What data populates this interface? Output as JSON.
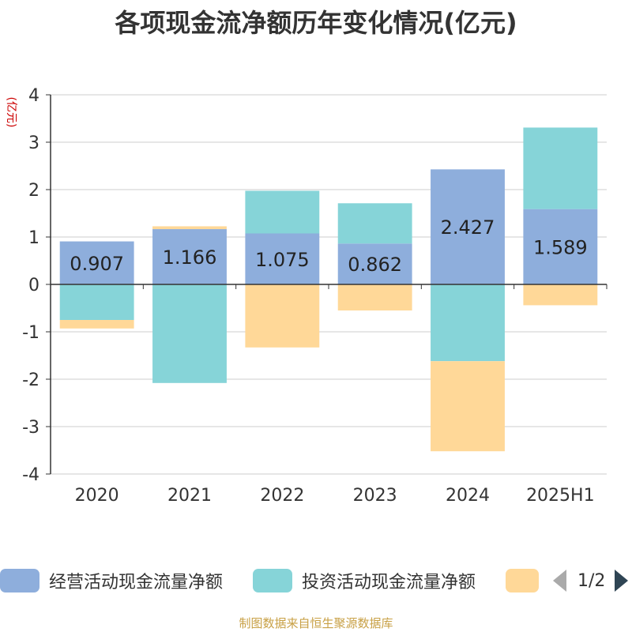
{
  "chart_data": {
    "type": "bar",
    "stacked": true,
    "title": "各项现金流净额历年变化情况(亿元)",
    "ylabel": "(亿元)",
    "xlabel": "",
    "ylim": [
      -4,
      4
    ],
    "yticks": [
      "4",
      "3",
      "2",
      "1",
      "0",
      "-1",
      "-2",
      "-3",
      "-4"
    ],
    "ytick_values": [
      4,
      3,
      2,
      1,
      0,
      -1,
      -2,
      -3,
      -4
    ],
    "grid": true,
    "legend_position": "bottom",
    "categories": [
      "2020",
      "2021",
      "2022",
      "2023",
      "2024",
      "2025H1"
    ],
    "series": [
      {
        "name": "经营活动现金流量净额",
        "color": "#8eaedc",
        "values": [
          0.907,
          1.166,
          1.075,
          0.862,
          2.427,
          1.589
        ],
        "data_labels": [
          "0.907",
          "1.166",
          "1.075",
          "0.862",
          "2.427",
          "1.589"
        ]
      },
      {
        "name": "投资活动现金流量净额",
        "color": "#86d4d8",
        "values": [
          -0.75,
          -2.08,
          0.9,
          0.85,
          -1.62,
          1.72
        ]
      },
      {
        "name": "",
        "color": "#ffd898",
        "values": [
          -0.18,
          0.06,
          -1.33,
          -0.55,
          -1.9,
          -0.44
        ]
      }
    ]
  },
  "legend": {
    "pager_text": "1/2"
  },
  "source_note": "制图数据来自恒生聚源数据库"
}
